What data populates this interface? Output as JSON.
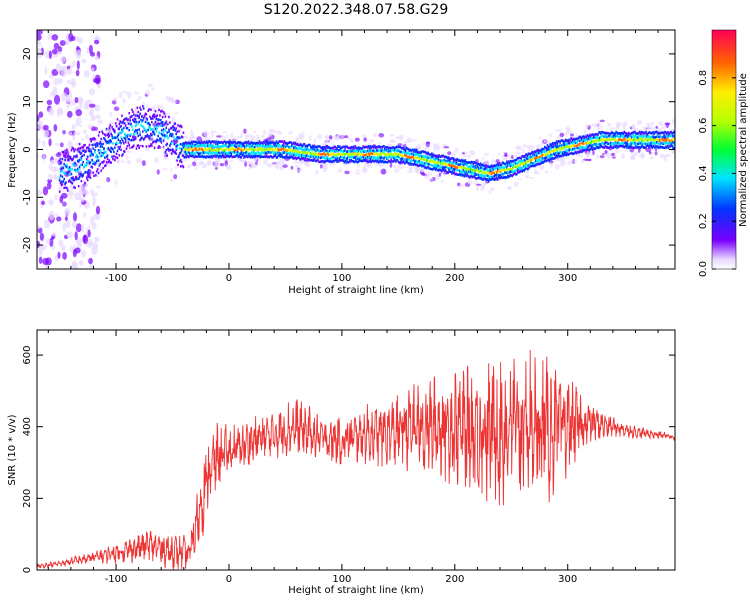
{
  "title": "S120.2022.348.07.58.G29",
  "chart_data": [
    {
      "type": "heatmap",
      "xlabel": "Height of straight line (km)",
      "ylabel": "Frequency (Hz)",
      "xlim": [
        -170,
        395
      ],
      "ylim": [
        -25,
        25
      ],
      "xticks": [
        -100,
        0,
        100,
        200,
        300
      ],
      "yticks": [
        20,
        10,
        0,
        -10,
        -20
      ],
      "colorbar": {
        "label": "Normalized spectral amplitude",
        "range": [
          0,
          1
        ],
        "ticks": [
          0.0,
          0.2,
          0.4,
          0.6,
          0.8
        ],
        "colormap": "rainbow"
      },
      "ridge": {
        "x": [
          -150,
          -130,
          -110,
          -90,
          -75,
          -60,
          -50,
          -40,
          -30,
          -10,
          0,
          20,
          50,
          80,
          100,
          120,
          150,
          170,
          190,
          210,
          230,
          250,
          270,
          290,
          310,
          330,
          350,
          370,
          395
        ],
        "y": [
          -5,
          -3,
          0,
          4,
          5,
          4,
          2,
          0,
          0,
          0,
          0,
          0,
          0,
          -1,
          -1,
          -1,
          -1,
          -2,
          -3,
          -4,
          -5,
          -4,
          -2,
          0,
          1,
          2,
          2,
          2,
          2
        ]
      }
    },
    {
      "type": "line",
      "xlabel": "Height of straight line (km)",
      "ylabel": "SNR (10 * v/v)",
      "xlim": [
        -170,
        395
      ],
      "ylim": [
        0,
        670
      ],
      "xticks": [
        -100,
        0,
        100,
        200,
        300
      ],
      "yticks": [
        0,
        200,
        400,
        600
      ],
      "color": "#ee3333",
      "envelope": {
        "x": [
          -170,
          -150,
          -120,
          -90,
          -70,
          -50,
          -35,
          -25,
          -20,
          -10,
          0,
          20,
          40,
          60,
          80,
          100,
          120,
          140,
          160,
          180,
          200,
          220,
          240,
          260,
          280,
          300,
          320,
          340,
          360,
          380,
          395
        ],
        "mean": [
          10,
          18,
          35,
          55,
          70,
          50,
          45,
          180,
          250,
          320,
          330,
          360,
          380,
          400,
          370,
          360,
          380,
          380,
          400,
          400,
          400,
          390,
          390,
          400,
          390,
          400,
          410,
          400,
          385,
          378,
          372
        ],
        "amp": [
          5,
          8,
          15,
          30,
          40,
          45,
          40,
          90,
          100,
          80,
          60,
          60,
          60,
          70,
          60,
          60,
          70,
          80,
          100,
          120,
          140,
          160,
          190,
          200,
          180,
          120,
          50,
          25,
          15,
          10,
          8
        ]
      }
    }
  ]
}
